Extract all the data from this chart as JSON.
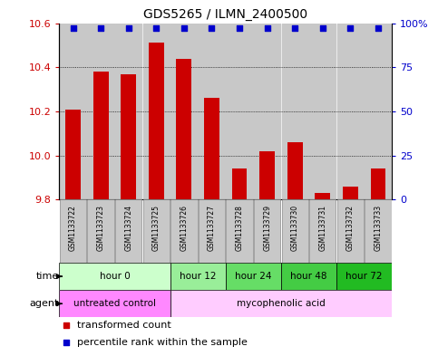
{
  "title": "GDS5265 / ILMN_2400500",
  "samples": [
    "GSM1133722",
    "GSM1133723",
    "GSM1133724",
    "GSM1133725",
    "GSM1133726",
    "GSM1133727",
    "GSM1133728",
    "GSM1133729",
    "GSM1133730",
    "GSM1133731",
    "GSM1133732",
    "GSM1133733"
  ],
  "transformed_count": [
    10.21,
    10.38,
    10.37,
    10.51,
    10.44,
    10.26,
    9.94,
    10.02,
    10.06,
    9.83,
    9.86,
    9.94
  ],
  "percentile_rank": [
    97,
    97,
    97,
    97,
    97,
    97,
    97,
    97,
    97,
    97,
    97,
    97
  ],
  "bar_color": "#cc0000",
  "dot_color": "#0000cc",
  "ylim_left": [
    9.8,
    10.6
  ],
  "ylim_right": [
    0,
    100
  ],
  "yticks_left": [
    9.8,
    10.0,
    10.2,
    10.4,
    10.6
  ],
  "yticks_right": [
    0,
    25,
    50,
    75,
    100
  ],
  "ytick_labels_right": [
    "0",
    "25",
    "50",
    "75",
    "100%"
  ],
  "ylabel_left_color": "#cc0000",
  "ylabel_right_color": "#0000cc",
  "time_groups": [
    {
      "label": "hour 0",
      "start": 0,
      "end": 3,
      "color": "#ccffcc"
    },
    {
      "label": "hour 12",
      "start": 4,
      "end": 5,
      "color": "#99ee99"
    },
    {
      "label": "hour 24",
      "start": 6,
      "end": 7,
      "color": "#66dd66"
    },
    {
      "label": "hour 48",
      "start": 8,
      "end": 9,
      "color": "#44cc44"
    },
    {
      "label": "hour 72",
      "start": 10,
      "end": 11,
      "color": "#22bb22"
    }
  ],
  "agent_groups": [
    {
      "label": "untreated control",
      "start": 0,
      "end": 3,
      "color": "#ff88ff"
    },
    {
      "label": "mycophenolic acid",
      "start": 4,
      "end": 11,
      "color": "#ffccff"
    }
  ],
  "legend_items": [
    {
      "label": "transformed count",
      "color": "#cc0000"
    },
    {
      "label": "percentile rank within the sample",
      "color": "#0000cc"
    }
  ],
  "bar_width": 0.55,
  "bg_color": "#ffffff",
  "sample_bg_color": "#c8c8c8",
  "sample_bg_edge": "#888888"
}
